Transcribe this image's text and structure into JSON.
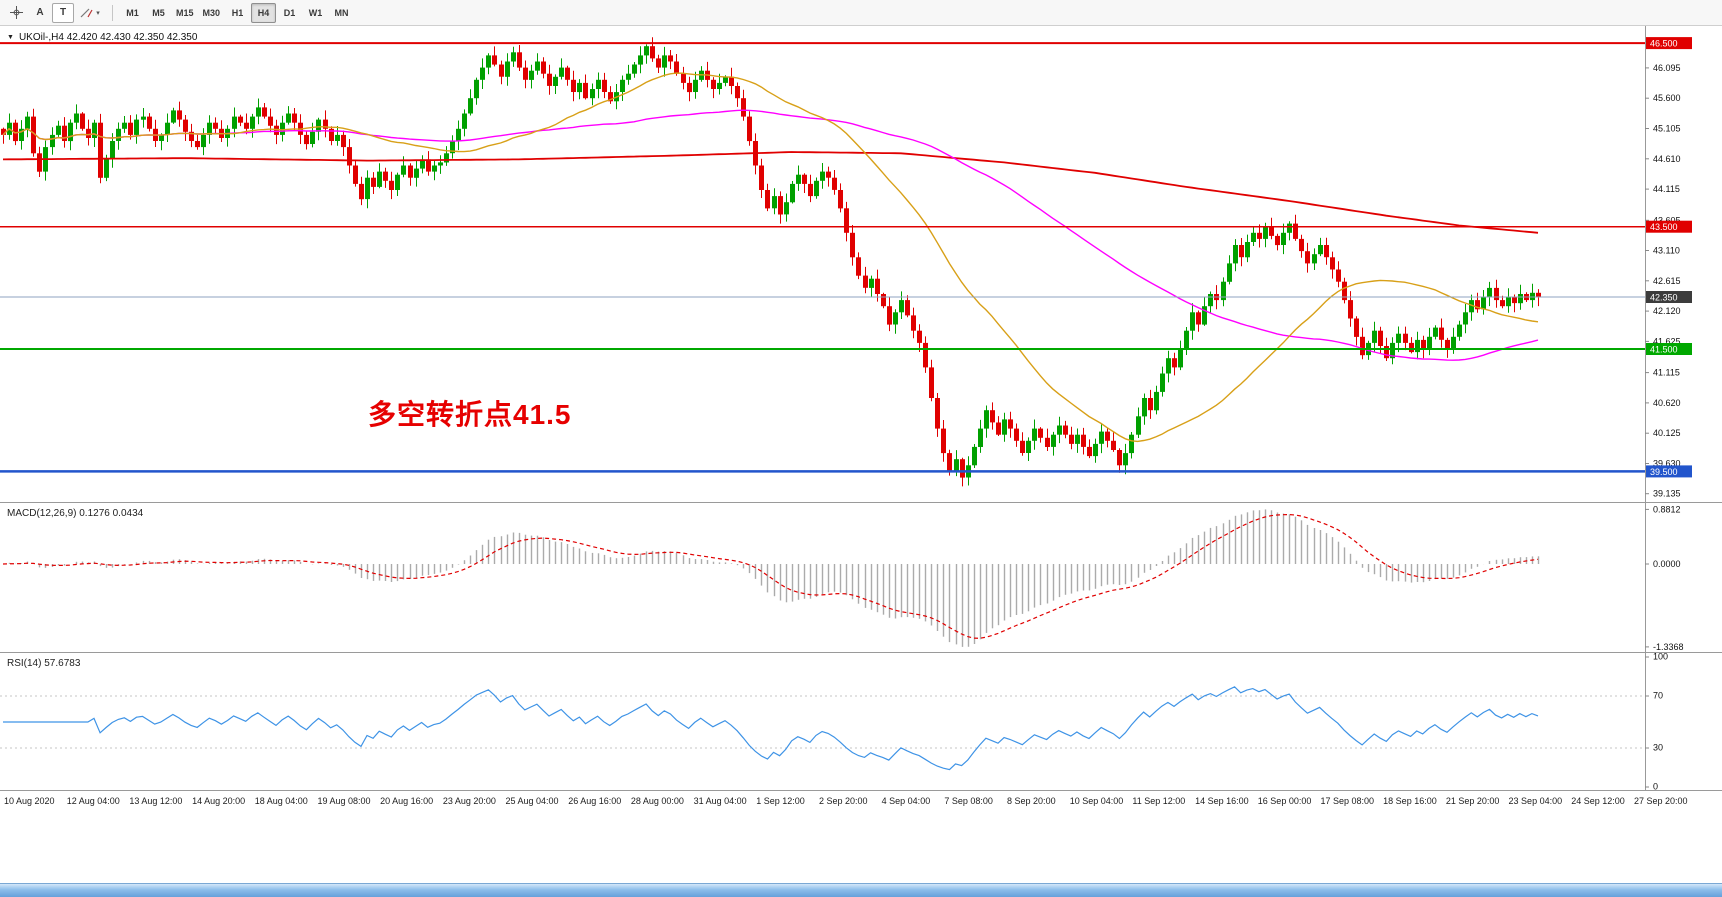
{
  "toolbar": {
    "tools": [
      {
        "label": "A"
      },
      {
        "label": "T"
      }
    ],
    "timeframes": [
      "M1",
      "M5",
      "M15",
      "M30",
      "H1",
      "H4",
      "D1",
      "W1",
      "MN"
    ],
    "selected_timeframe": "H4"
  },
  "chart": {
    "symbol_line": "UKOil-,H4 42.420 42.430 42.350 42.350",
    "annotation": "多空转折点41.5",
    "price_ticks": [
      "46.095",
      "45.600",
      "45.105",
      "44.610",
      "44.115",
      "43.605",
      "43.110",
      "42.615",
      "42.120",
      "41.625",
      "41.115",
      "40.620",
      "40.125",
      "39.630",
      "39.135"
    ],
    "hlines": [
      {
        "price": 46.5,
        "label": "46.500",
        "color": "#e00000",
        "width": 2
      },
      {
        "price": 43.5,
        "label": "43.500",
        "color": "#e00000",
        "width": 1.5
      },
      {
        "price": 41.5,
        "label": "41.500",
        "color": "#00a800",
        "width": 2
      },
      {
        "price": 39.5,
        "label": "39.500",
        "color": "#2255cc",
        "width": 2.5
      }
    ],
    "current_price": {
      "price": 42.35,
      "label": "42.350",
      "color": "#3c3c3c",
      "line_color": "#8fa3c0"
    },
    "colors": {
      "up": "#00a000",
      "down": "#e00000",
      "ma_fast": "#d8a018",
      "ma_mid": "#ff00ff",
      "ma_slow": "#e00000"
    }
  },
  "macd": {
    "label": "MACD(12,26,9) 0.1276 0.0434",
    "axis": [
      "0.8812",
      "0.0000",
      "-1.3368"
    ],
    "max": 0.8812,
    "min": -1.3368,
    "colors": {
      "histogram": "#ababab",
      "signal": "#e00000"
    }
  },
  "rsi": {
    "label": "RSI(14) 57.6783",
    "axis": [
      "100",
      "70",
      "30",
      "0"
    ],
    "levels": [
      70,
      30
    ],
    "color": "#3e93e6"
  },
  "time_axis": [
    "10 Aug 2020",
    "12 Aug 04:00",
    "13 Aug 12:00",
    "14 Aug 20:00",
    "18 Aug 04:00",
    "19 Aug 08:00",
    "20 Aug 16:00",
    "23 Aug 20:00",
    "25 Aug 04:00",
    "26 Aug 16:00",
    "28 Aug 00:00",
    "31 Aug 04:00",
    "1 Sep 12:00",
    "2 Sep 20:00",
    "4 Sep 04:00",
    "7 Sep 08:00",
    "8 Sep 20:00",
    "10 Sep 04:00",
    "11 Sep 12:00",
    "14 Sep 16:00",
    "16 Sep 00:00",
    "17 Sep 08:00",
    "18 Sep 16:00",
    "21 Sep 20:00",
    "23 Sep 04:00",
    "24 Sep 12:00",
    "27 Sep 20:00"
  ],
  "chart_data": {
    "type": "candlestick",
    "symbol": "UKOil-",
    "timeframe": "H4",
    "price_range": [
      39.0,
      46.78
    ],
    "open_first": 45.1,
    "closes": [
      45.0,
      45.2,
      44.9,
      45.1,
      45.3,
      44.7,
      44.4,
      44.8,
      45.0,
      45.15,
      44.9,
      45.2,
      45.35,
      45.1,
      44.95,
      45.2,
      44.3,
      44.6,
      44.9,
      45.1,
      45.2,
      45.0,
      45.25,
      45.3,
      45.1,
      44.9,
      45.0,
      45.2,
      45.4,
      45.25,
      45.05,
      44.9,
      44.8,
      45.0,
      45.2,
      45.1,
      44.95,
      45.1,
      45.3,
      45.2,
      45.1,
      45.3,
      45.45,
      45.3,
      45.15,
      45.0,
      45.2,
      45.35,
      45.2,
      45.0,
      44.85,
      45.05,
      45.25,
      45.1,
      44.9,
      45.0,
      44.8,
      44.5,
      44.2,
      43.95,
      44.3,
      44.15,
      44.4,
      44.25,
      44.1,
      44.35,
      44.5,
      44.3,
      44.45,
      44.6,
      44.4,
      44.5,
      44.55,
      44.7,
      44.9,
      45.1,
      45.35,
      45.6,
      45.9,
      46.1,
      46.3,
      46.15,
      45.95,
      46.2,
      46.35,
      46.1,
      45.9,
      46.05,
      46.2,
      46.0,
      45.8,
      45.95,
      46.1,
      45.9,
      45.7,
      45.85,
      45.6,
      45.75,
      45.9,
      45.7,
      45.55,
      45.7,
      45.9,
      46.0,
      46.15,
      46.3,
      46.45,
      46.25,
      46.1,
      46.3,
      46.2,
      46.0,
      45.85,
      45.7,
      45.9,
      46.05,
      45.9,
      45.75,
      45.85,
      45.95,
      45.8,
      45.6,
      45.3,
      44.9,
      44.5,
      44.1,
      43.8,
      44.0,
      43.7,
      43.9,
      44.2,
      44.35,
      44.2,
      44.0,
      44.25,
      44.4,
      44.3,
      44.1,
      43.8,
      43.4,
      43.0,
      42.7,
      42.5,
      42.65,
      42.4,
      42.2,
      41.9,
      42.1,
      42.3,
      42.05,
      41.8,
      41.6,
      41.2,
      40.7,
      40.2,
      39.8,
      39.5,
      39.7,
      39.4,
      39.6,
      39.9,
      40.2,
      40.5,
      40.3,
      40.1,
      40.35,
      40.2,
      40.0,
      39.8,
      40.0,
      40.2,
      40.05,
      39.9,
      40.1,
      40.25,
      40.1,
      39.95,
      40.1,
      39.9,
      39.75,
      39.95,
      40.15,
      40.0,
      39.85,
      39.6,
      39.8,
      40.1,
      40.4,
      40.7,
      40.5,
      40.8,
      41.1,
      41.35,
      41.2,
      41.5,
      41.8,
      42.1,
      41.9,
      42.2,
      42.4,
      42.3,
      42.6,
      42.9,
      43.2,
      43.0,
      43.25,
      43.4,
      43.3,
      43.5,
      43.35,
      43.2,
      43.4,
      43.55,
      43.3,
      43.1,
      42.9,
      43.05,
      43.2,
      43.0,
      42.8,
      42.6,
      42.3,
      42.0,
      41.7,
      41.4,
      41.6,
      41.8,
      41.55,
      41.35,
      41.6,
      41.75,
      41.6,
      41.45,
      41.65,
      41.5,
      41.7,
      41.85,
      41.65,
      41.5,
      41.7,
      41.9,
      42.1,
      42.3,
      42.15,
      42.35,
      42.5,
      42.3,
      42.2,
      42.35,
      42.25,
      42.4,
      42.3,
      42.42,
      42.35
    ],
    "indicators": {
      "sma_fast_period": 34,
      "sma_mid_period": 89,
      "red_ma_points": [
        [
          0,
          44.6
        ],
        [
          30,
          44.62
        ],
        [
          60,
          44.58
        ],
        [
          85,
          44.6
        ],
        [
          110,
          44.66
        ],
        [
          130,
          44.72
        ],
        [
          148,
          44.7
        ],
        [
          165,
          44.55
        ],
        [
          180,
          44.38
        ],
        [
          195,
          44.15
        ],
        [
          212,
          43.92
        ],
        [
          228,
          43.68
        ],
        [
          240,
          43.52
        ],
        [
          253,
          43.4
        ]
      ]
    }
  }
}
